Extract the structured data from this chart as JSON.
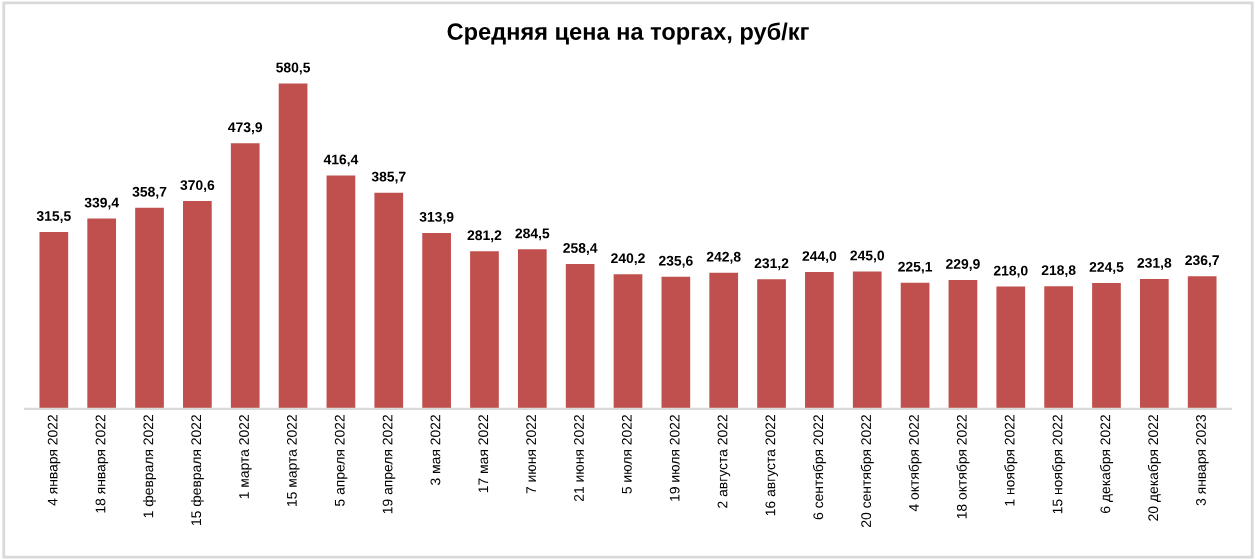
{
  "chart_data": {
    "type": "bar",
    "title": "Средняя цена на торгах, руб/кг",
    "categories": [
      "4 января 2022",
      "18 января 2022",
      "1 февраля 2022",
      "15 февраля 2022",
      "1 марта 2022",
      "15 марта 2022",
      "5 апреля 2022",
      "19 апреля 2022",
      "3 мая 2022",
      "17 мая 2022",
      "7 июня 2022",
      "21 июня 2022",
      "5 июля 2022",
      "19 июля 2022",
      "2 августа 2022",
      "16 августа 2022",
      "6 сентября 2022",
      "20 сентября 2022",
      "4 октября 2022",
      "18 октября 2022",
      "1 ноября 2022",
      "15 ноября 2022",
      "6 декабря 2022",
      "20 декабря 2022",
      "3 января 2023"
    ],
    "values": [
      315.5,
      339.4,
      358.7,
      370.6,
      473.9,
      580.5,
      416.4,
      385.7,
      313.9,
      281.2,
      284.5,
      258.4,
      240.2,
      235.6,
      242.8,
      231.2,
      244.0,
      245.0,
      225.1,
      229.9,
      218.0,
      218.8,
      224.5,
      231.8,
      236.7
    ],
    "value_labels": [
      "315,5",
      "339,4",
      "358,7",
      "370,6",
      "473,9",
      "580,5",
      "416,4",
      "385,7",
      "313,9",
      "281,2",
      "284,5",
      "258,4",
      "240,2",
      "235,6",
      "242,8",
      "231,2",
      "244,0",
      "245,0",
      "225,1",
      "229,9",
      "218,0",
      "218,8",
      "224,5",
      "231,8",
      "236,7"
    ],
    "color": "#c0504d",
    "grid": false,
    "legend": false
  }
}
